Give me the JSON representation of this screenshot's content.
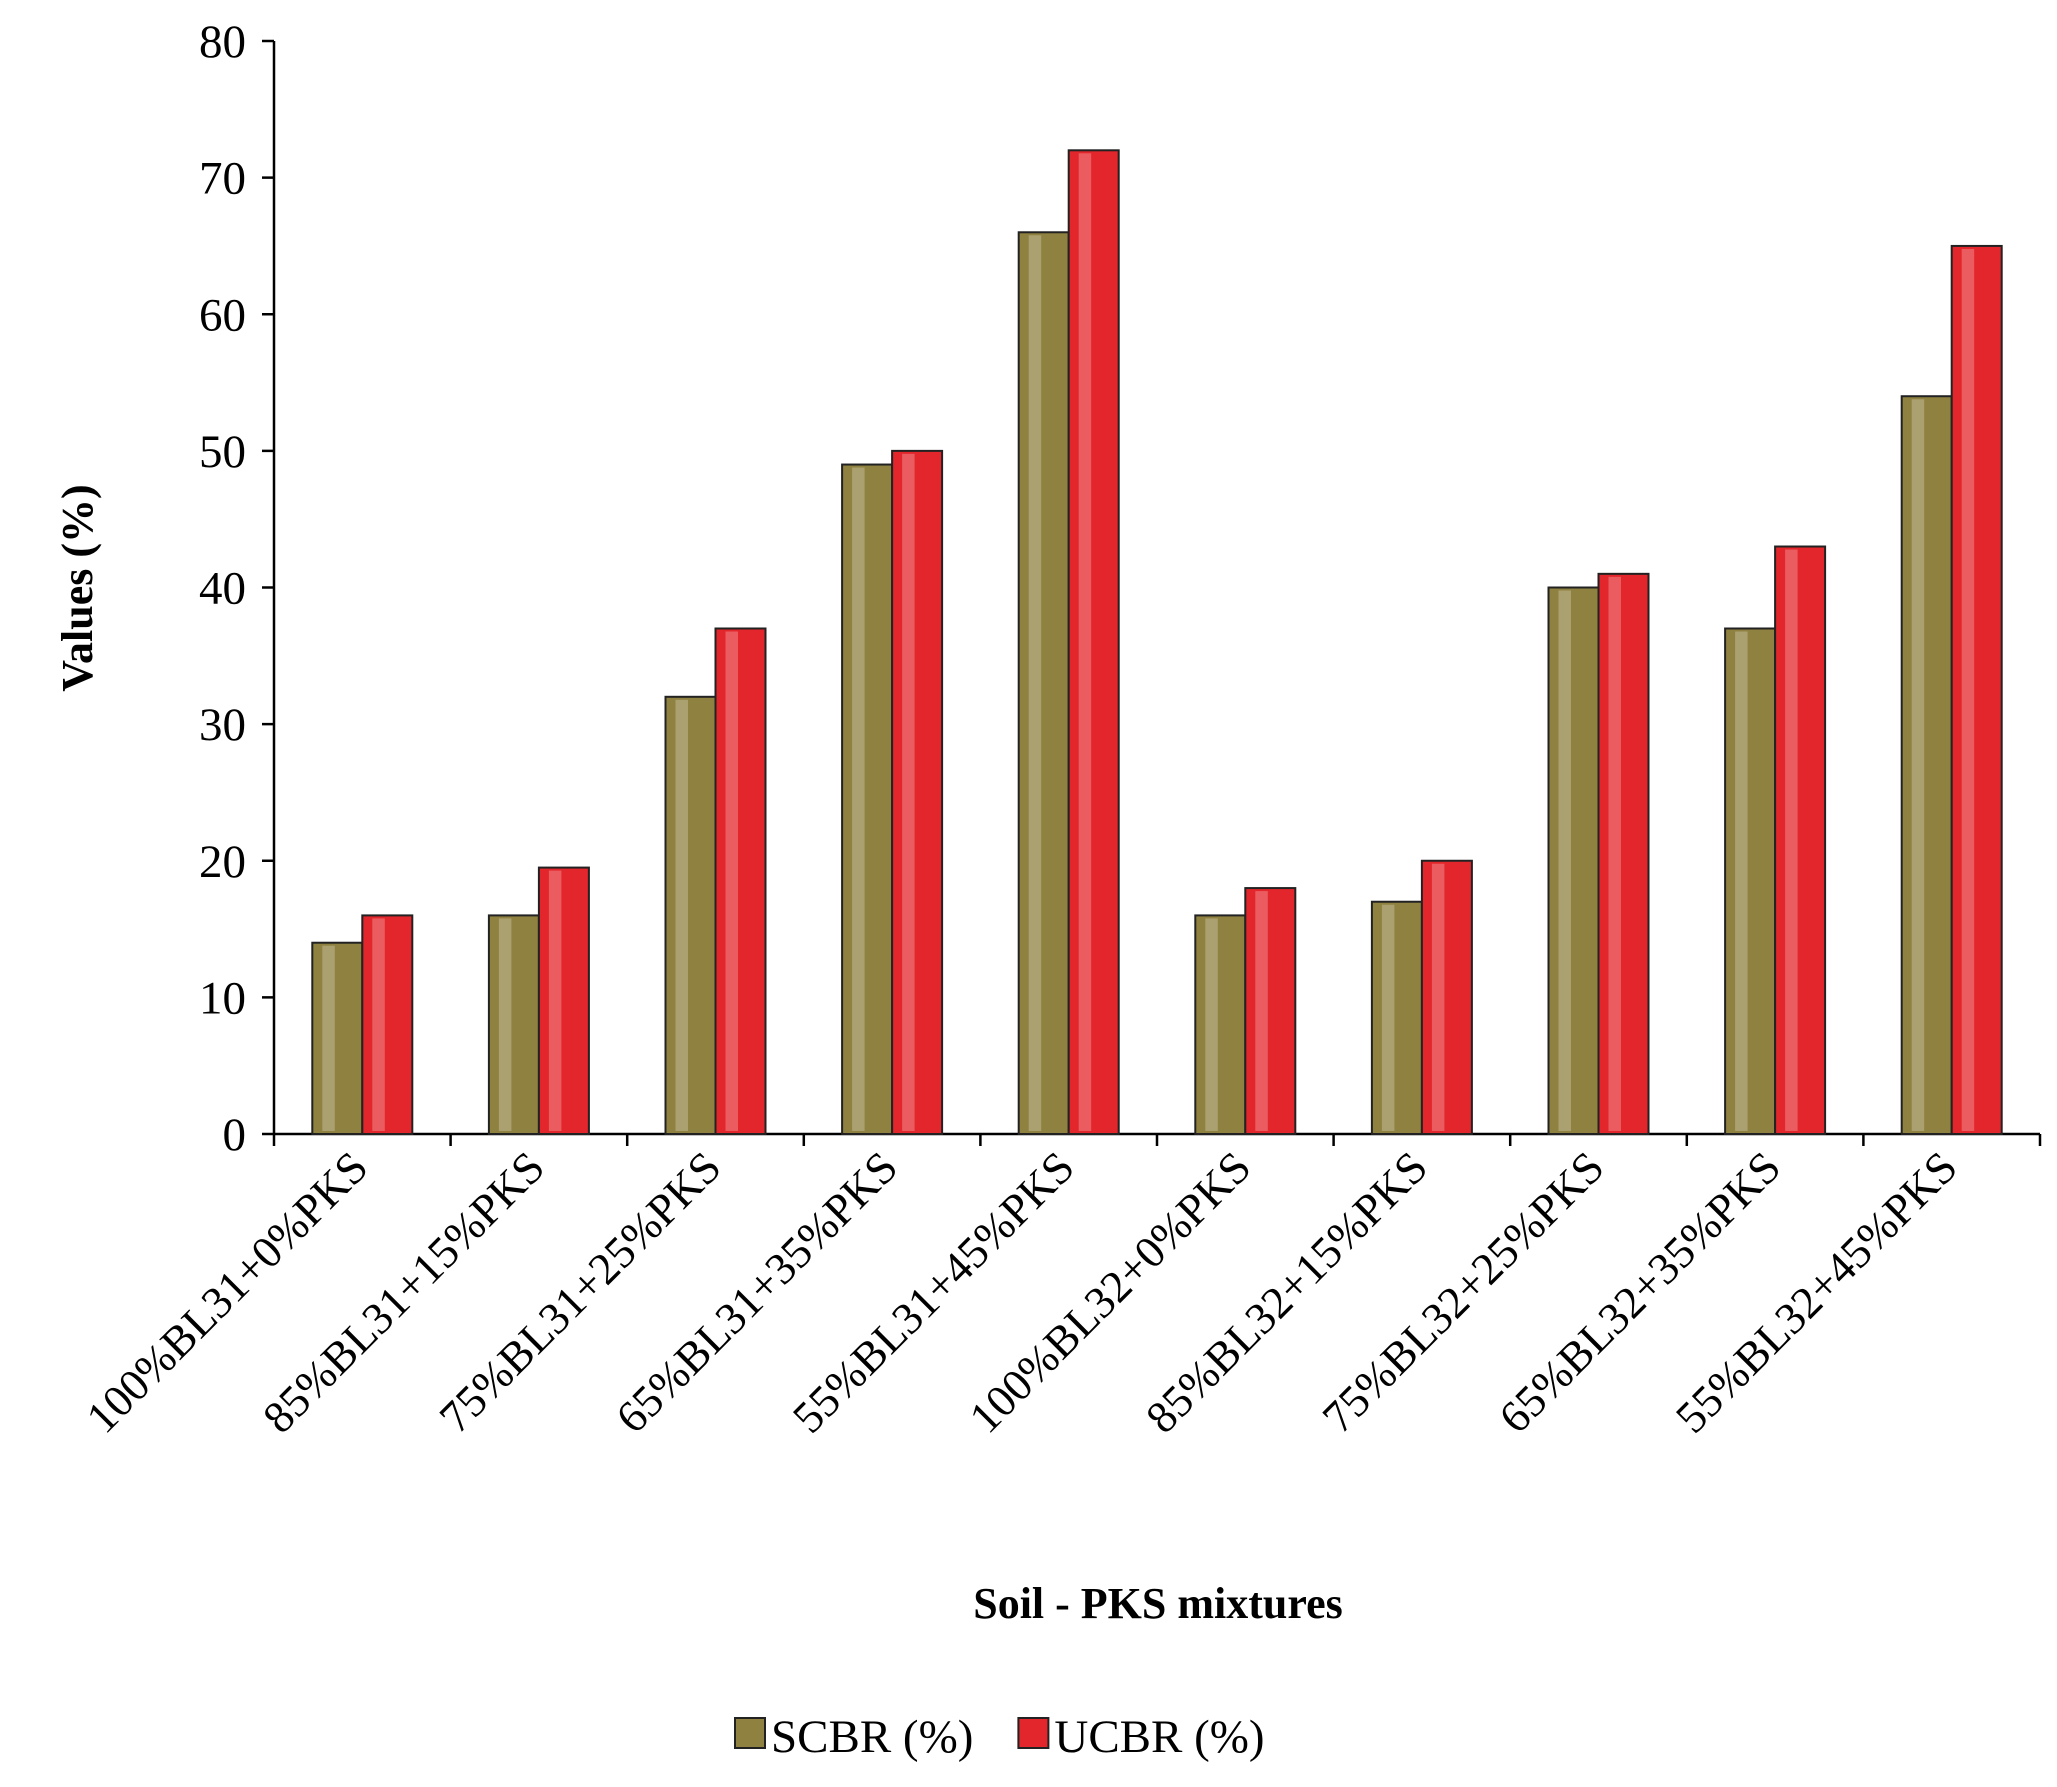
{
  "chart_data": {
    "type": "bar",
    "x_label": "Soil - PKS mixtures",
    "y_label": "Values (%)",
    "categories": [
      "100%BL31+0%PKS",
      "85%BL31+15%PKS",
      "75%BL31+25%PKS",
      "65%BL31+35%PKS",
      "55%BL31+45%PKS",
      "100%BL32+0%PKS",
      "85%BL32+15%PKS",
      "75%BL32+25%PKS",
      "65%BL32+35%PKS",
      "55%BL32+45%PKS"
    ],
    "series": [
      {
        "name": "SCBR (%)",
        "color": "#8f8140",
        "values": [
          14,
          16,
          32,
          49,
          66,
          16,
          17,
          40,
          37,
          54
        ]
      },
      {
        "name": "UCBR (%)",
        "color": "#e3262b",
        "values": [
          16,
          19.5,
          37,
          50,
          72,
          18,
          20,
          41,
          43,
          65
        ]
      }
    ],
    "ylim": [
      0,
      80
    ],
    "yticks": [
      0,
      10,
      20,
      30,
      40,
      50,
      60,
      70,
      80
    ],
    "grid": false,
    "legend": "bottom"
  }
}
